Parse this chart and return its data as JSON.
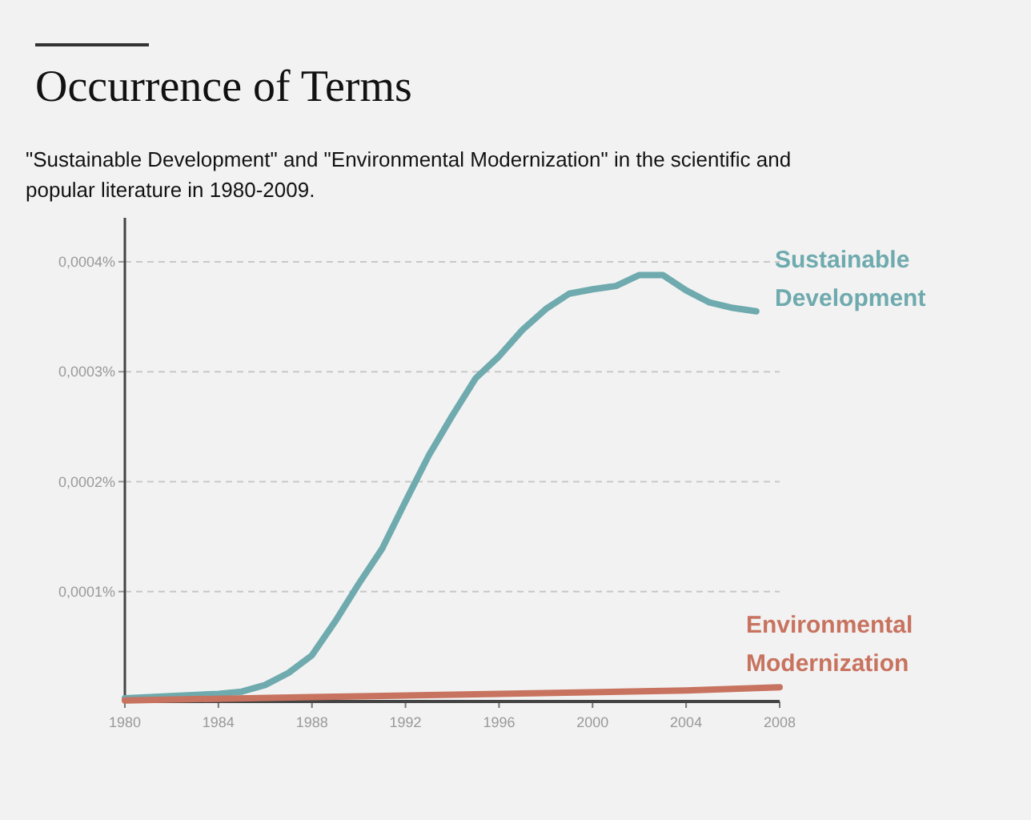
{
  "chart_data": {
    "type": "line",
    "title": "Occurrence of Terms",
    "subtitle": "\"Sustainable Development\" and \"Environmental Modernization\" in the scientific and popular literature in 1980-2009.",
    "x": [
      1980,
      1984,
      1985,
      1986,
      1987,
      1988,
      1989,
      1990,
      1991,
      1992,
      1993,
      1994,
      1995,
      1996,
      1997,
      1998,
      1999,
      2000,
      2001,
      2002,
      2003,
      2004,
      2005,
      2006,
      2007
    ],
    "series": [
      {
        "name": "Sustainable Development",
        "color": "#6eaaae",
        "values": [
          3e-06,
          7e-06,
          9e-06,
          1.5e-05,
          2.6e-05,
          4.2e-05,
          7.3e-05,
          0.000107,
          0.000139,
          0.000182,
          0.000224,
          0.00026,
          0.000294,
          0.000314,
          0.000338,
          0.000357,
          0.000371,
          0.000375,
          0.000378,
          0.000388,
          0.000388,
          0.000374,
          0.000363,
          0.000358,
          0.000355
        ]
      },
      {
        "name": "Environmental Modernization",
        "color": "#c8735f",
        "x": [
          1980,
          1988,
          1996,
          2004,
          2008
        ],
        "values": [
          1e-06,
          4e-06,
          7e-06,
          1e-05,
          1.3e-05
        ]
      }
    ],
    "xlim": [
      1980,
      2008
    ],
    "xticks": [
      1980,
      1984,
      1988,
      1992,
      1996,
      2000,
      2004,
      2008
    ],
    "ylim": [
      0,
      0.00044
    ],
    "yticks": [
      {
        "value": 0.0001,
        "label": "0,0001%"
      },
      {
        "value": 0.0002,
        "label": "0,0002%"
      },
      {
        "value": 0.0003,
        "label": "0,0003%"
      },
      {
        "value": 0.0004,
        "label": "0,0004%"
      }
    ],
    "grid": "y",
    "legend": "right",
    "marker": "none",
    "line_style": "solid"
  }
}
